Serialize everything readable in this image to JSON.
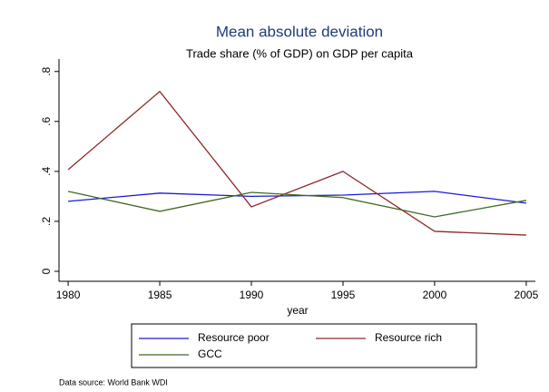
{
  "chart_data": {
    "type": "line",
    "title": "Mean absolute deviation",
    "subtitle": "Trade share (% of GDP) on GDP per capita",
    "xlabel": "year",
    "note": "Data source: World Bank WDI",
    "x": [
      1980,
      1985,
      1990,
      1995,
      2000,
      2005
    ],
    "series": [
      {
        "name": "Resource poor",
        "color": "#1a1ad6",
        "values": [
          0.28,
          0.313,
          0.3,
          0.305,
          0.32,
          0.273
        ]
      },
      {
        "name": "Resource rich",
        "color": "#8c2a2a",
        "values": [
          0.407,
          0.72,
          0.258,
          0.4,
          0.16,
          0.145
        ]
      },
      {
        "name": "GCC",
        "color": "#3f6b22",
        "values": [
          0.32,
          0.24,
          0.316,
          0.295,
          0.218,
          0.284
        ]
      }
    ],
    "xlim": [
      1979.5,
      2005.5
    ],
    "xticks": [
      1980,
      1985,
      1990,
      1995,
      2000,
      2005
    ],
    "ylim": [
      -0.04,
      0.85
    ],
    "yticks": [
      0,
      {
        "value": 0.2,
        "label": ".2"
      },
      {
        "value": 0.4,
        "label": ".4"
      },
      {
        "value": 0.6,
        "label": ".6"
      },
      {
        "value": 0.8,
        "label": ".8"
      }
    ],
    "grid": false,
    "legend": "bottom"
  }
}
